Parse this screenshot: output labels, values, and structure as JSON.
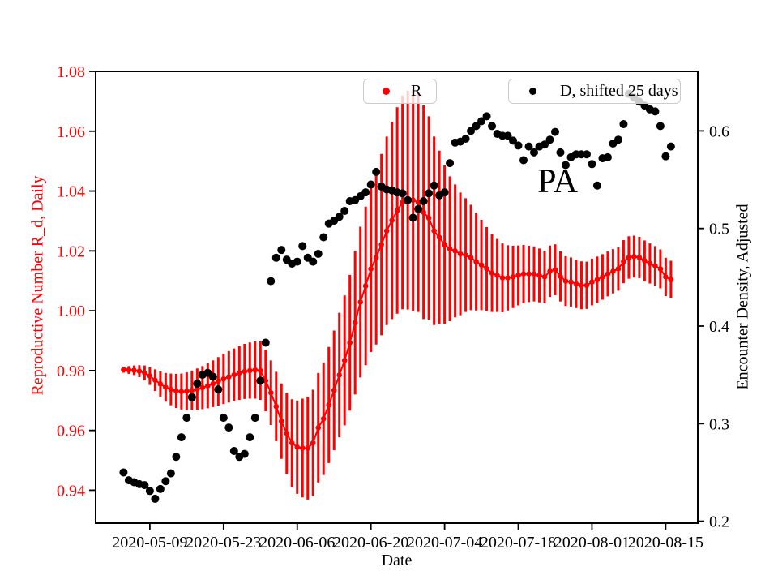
{
  "labels": {
    "xlabel": "Date",
    "ylabel_left": "Reproductive Number R_d, Daily",
    "ylabel_right": "Encounter Density, Adjusted",
    "annotation": "PA",
    "legend_r": "R",
    "legend_d": "D, shifted 25 days"
  },
  "chart_data": {
    "type": "line",
    "title": "",
    "xlabel": "Date",
    "ylabel_left": "Reproductive Number R_d, Daily",
    "ylabel_right": "Encounter Density, Adjusted",
    "annotation": {
      "text": "PA"
    },
    "legend_position": "upper center",
    "grid": false,
    "colors": {
      "r_series": "#ff0000",
      "d_series": "#000000",
      "left_tick_labels": "#ff0000",
      "frame": "#000000",
      "legend_border": "#cccccc"
    },
    "x_unit": "day",
    "x_start_date": "2020-05-04",
    "xlim_day_offsets": [
      -5.3,
      109.1
    ],
    "ylim_left": [
      0.929,
      1.08
    ],
    "ylim_right": [
      0.198,
      0.661
    ],
    "y_ticks_left": {
      "values": [
        1.08,
        1.06,
        1.04,
        1.02,
        1.0,
        0.98,
        0.96,
        0.94
      ],
      "labels": [
        "1.08",
        "1.06",
        "1.04",
        "1.02",
        "1.00",
        "0.98",
        "0.96",
        "0.94"
      ]
    },
    "y_ticks_right": {
      "values": [
        0.6,
        0.5,
        0.4,
        0.3,
        0.2
      ],
      "labels": [
        "0.6",
        "0.5",
        "0.4",
        "0.3",
        "0.2"
      ]
    },
    "x_ticks": {
      "day_offsets": [
        5,
        19,
        33,
        47,
        61,
        75,
        89,
        103
      ],
      "labels": [
        "2020-05-09",
        "2020-05-23",
        "2020-06-06",
        "2020-06-20",
        "2020-07-04",
        "2020-07-18",
        "2020-08-01",
        "2020-08-15"
      ]
    },
    "series": [
      {
        "name": "R",
        "axis": "left",
        "style": "line_errorbar_dots",
        "color": "#ff0000",
        "values": [
          0.9803,
          0.9802,
          0.9801,
          0.9798,
          0.9792,
          0.9782,
          0.9768,
          0.9755,
          0.9744,
          0.9737,
          0.9732,
          0.973,
          0.9731,
          0.9734,
          0.9738,
          0.9743,
          0.9749,
          0.9756,
          0.9764,
          0.9772,
          0.9779,
          0.9786,
          0.9792,
          0.9797,
          0.98,
          0.9802,
          0.98,
          0.9766,
          0.9726,
          0.968,
          0.9631,
          0.959,
          0.9558,
          0.9544,
          0.9541,
          0.9541,
          0.9558,
          0.9609,
          0.9639,
          0.9685,
          0.9734,
          0.9785,
          0.9834,
          0.9893,
          0.996,
          1.0029,
          1.0083,
          1.014,
          1.0178,
          1.0221,
          1.0267,
          1.0302,
          1.0335,
          1.0362,
          1.037,
          1.037,
          1.0362,
          1.0329,
          1.031,
          1.0267,
          1.0245,
          1.0221,
          1.0207,
          1.02,
          1.019,
          1.0186,
          1.0178,
          1.0164,
          1.0153,
          1.014,
          1.0126,
          1.0118,
          1.011,
          1.011,
          1.0113,
          1.0118,
          1.0123,
          1.0123,
          1.0123,
          1.0118,
          1.0113,
          1.0132,
          1.0137,
          1.0115,
          1.0099,
          1.0096,
          1.009,
          1.0085,
          1.0085,
          1.0096,
          1.0104,
          1.0113,
          1.0123,
          1.0132,
          1.014,
          1.0164,
          1.0178,
          1.0181,
          1.0178,
          1.0167,
          1.0158,
          1.015,
          1.014,
          1.0113,
          1.0104
        ],
        "errors": [
          0.001,
          0.0013,
          0.0016,
          0.002,
          0.0025,
          0.003,
          0.0036,
          0.0042,
          0.0048,
          0.0053,
          0.0057,
          0.006,
          0.0063,
          0.0066,
          0.0069,
          0.0072,
          0.0075,
          0.0078,
          0.0081,
          0.0084,
          0.0086,
          0.0088,
          0.009,
          0.0092,
          0.0094,
          0.0096,
          0.0098,
          0.0102,
          0.0108,
          0.0116,
          0.0126,
          0.0136,
          0.0146,
          0.0156,
          0.0165,
          0.0172,
          0.0178,
          0.0183,
          0.0188,
          0.0194,
          0.02,
          0.0208,
          0.0217,
          0.0227,
          0.024,
          0.0252,
          0.0265,
          0.0278,
          0.0291,
          0.0303,
          0.0315,
          0.033,
          0.0345,
          0.0357,
          0.0366,
          0.037,
          0.0366,
          0.0357,
          0.034,
          0.0315,
          0.029,
          0.0265,
          0.0242,
          0.0222,
          0.0205,
          0.019,
          0.0176,
          0.0163,
          0.0151,
          0.014,
          0.013,
          0.0122,
          0.0115,
          0.0109,
          0.0104,
          0.01,
          0.0097,
          0.0094,
          0.0092,
          0.009,
          0.0088,
          0.0086,
          0.0085,
          0.0084,
          0.0083,
          0.0082,
          0.0081,
          0.008,
          0.0079,
          0.0078,
          0.0077,
          0.0076,
          0.0075,
          0.0074,
          0.0073,
          0.0072,
          0.0071,
          0.007,
          0.0069,
          0.0068,
          0.0067,
          0.0066,
          0.0065,
          0.0064,
          0.0063
        ]
      },
      {
        "name": "D, shifted 25 days",
        "axis": "right",
        "style": "scatter",
        "color": "#000000",
        "values": [
          0.25,
          0.242,
          0.24,
          0.238,
          0.237,
          0.231,
          0.223,
          0.233,
          0.241,
          0.249,
          0.266,
          0.286,
          0.306,
          0.327,
          0.341,
          0.35,
          0.352,
          0.348,
          0.335,
          0.306,
          0.296,
          0.272,
          0.266,
          0.269,
          0.286,
          0.306,
          0.344,
          0.383,
          0.446,
          0.47,
          0.478,
          0.468,
          0.464,
          0.466,
          0.482,
          0.47,
          0.466,
          0.474,
          0.491,
          0.505,
          0.508,
          0.512,
          0.518,
          0.528,
          0.529,
          0.533,
          0.537,
          0.545,
          0.558,
          0.543,
          0.54,
          0.539,
          0.537,
          0.536,
          0.529,
          0.511,
          0.52,
          0.528,
          0.536,
          0.544,
          0.534,
          0.537,
          0.567,
          0.588,
          0.589,
          0.592,
          0.6,
          0.605,
          0.61,
          0.615,
          0.605,
          0.597,
          0.595,
          0.595,
          0.59,
          0.585,
          0.57,
          0.584,
          0.578,
          0.584,
          0.586,
          0.591,
          0.599,
          0.578,
          0.565,
          0.573,
          0.576,
          0.576,
          0.576,
          0.566,
          0.544,
          0.572,
          0.573,
          0.587,
          0.591,
          0.607,
          0.638,
          0.634,
          0.63,
          0.626,
          0.622,
          0.62,
          0.605,
          0.574,
          0.584
        ]
      }
    ]
  }
}
